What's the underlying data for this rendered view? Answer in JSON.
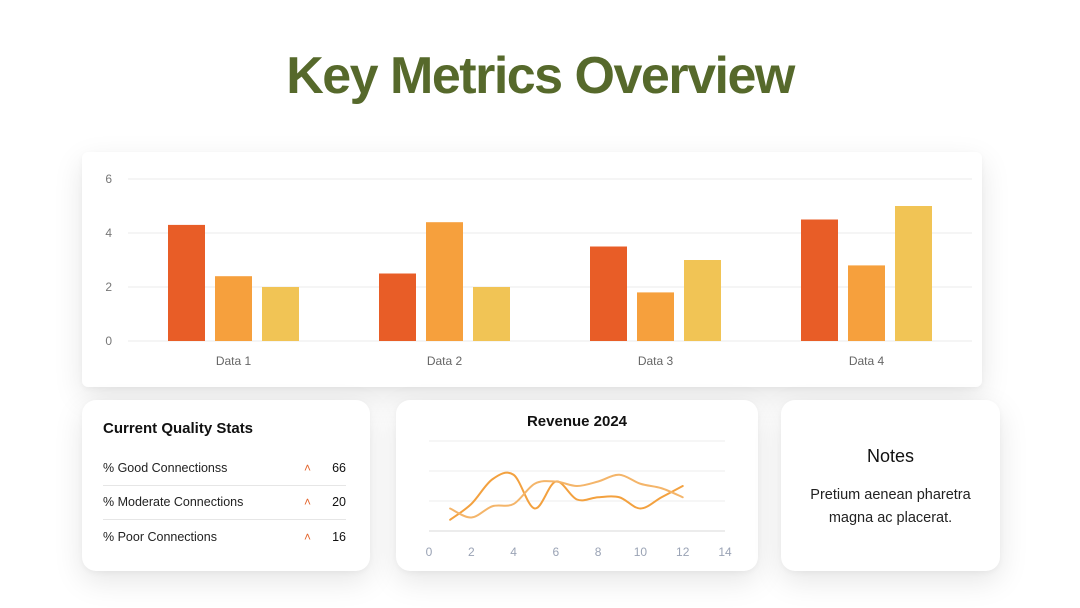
{
  "title": "Key Metrics Overview",
  "colors": {
    "title": "#56692b",
    "series1": "#e85d27",
    "series2": "#f6a03d",
    "series3": "#f1c455",
    "line1": "#f3a13f",
    "line2": "#f4b56a",
    "arrow": "#e3642b"
  },
  "quality_stats": {
    "title": "Current Quality Stats",
    "rows": [
      {
        "label": "% Good Connectionss",
        "icon": "chevron-up-icon",
        "value": "66"
      },
      {
        "label": "% Moderate Connections",
        "icon": "chevron-up-icon",
        "value": "20"
      },
      {
        "label": "% Poor Connections",
        "icon": "chevron-up-icon",
        "value": "16"
      }
    ]
  },
  "notes": {
    "title": "Notes",
    "body": "Pretium aenean pharetra magna ac placerat."
  },
  "chart_data": [
    {
      "type": "bar",
      "title": "",
      "categories": [
        "Data 1",
        "Data 2",
        "Data 3",
        "Data 4"
      ],
      "series": [
        {
          "values": [
            4.3,
            2.5,
            3.5,
            4.5
          ]
        },
        {
          "values": [
            2.4,
            4.4,
            1.8,
            2.8
          ]
        },
        {
          "values": [
            2.0,
            2.0,
            3.0,
            5.0
          ]
        }
      ],
      "yticks": [
        0,
        2,
        4,
        6
      ],
      "ylim": [
        0,
        6
      ],
      "grid": true,
      "legend": "none"
    },
    {
      "type": "line",
      "title": "Revenue 2024",
      "xticks": [
        0,
        2,
        4,
        6,
        8,
        10,
        12,
        14
      ],
      "xlim": [
        0,
        14
      ],
      "ylim": [
        0,
        4
      ],
      "grid": true,
      "series": [
        {
          "x": [
            1,
            2,
            3,
            4,
            5,
            6,
            7,
            8,
            9,
            10,
            11,
            12
          ],
          "y": [
            0.5,
            1.2,
            2.3,
            2.5,
            1.0,
            2.2,
            1.4,
            1.5,
            1.5,
            1.0,
            1.5,
            2.0
          ]
        },
        {
          "x": [
            1,
            2,
            3,
            4,
            5,
            6,
            7,
            8,
            9,
            10,
            11,
            12
          ],
          "y": [
            1.0,
            0.6,
            1.1,
            1.2,
            2.1,
            2.2,
            2.0,
            2.2,
            2.5,
            2.1,
            1.9,
            1.5
          ]
        }
      ]
    }
  ]
}
